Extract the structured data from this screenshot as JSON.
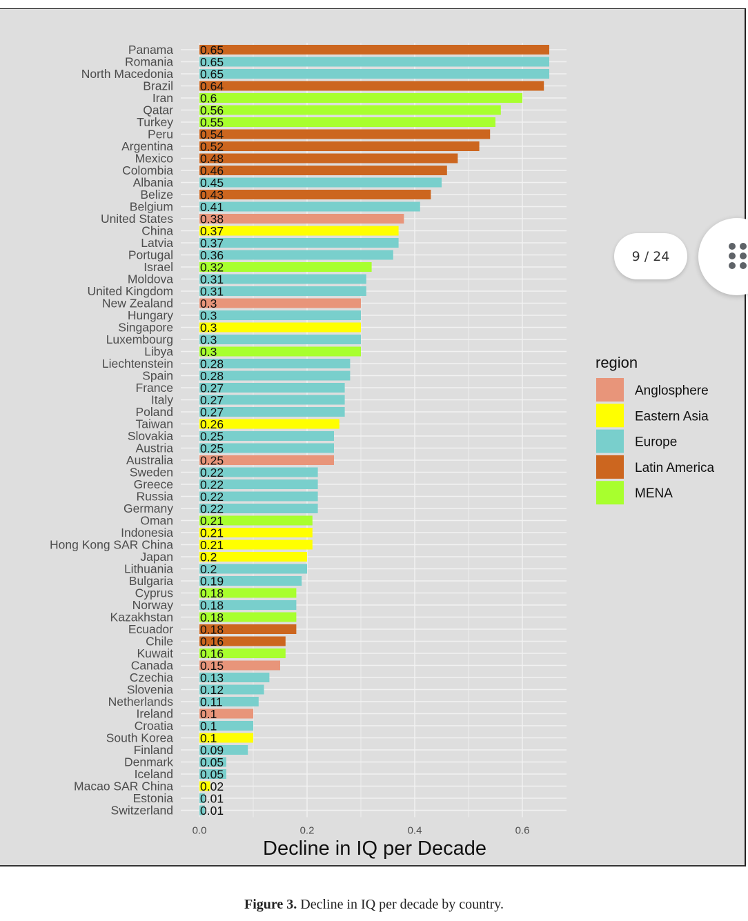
{
  "caption": {
    "label": "Figure 3.",
    "text": " Decline in IQ per decade by country."
  },
  "viewer": {
    "page_indicator": "9 / 24",
    "grid_button_icon": "grid-dots-icon"
  },
  "chart_data": {
    "type": "bar",
    "orientation": "horizontal",
    "title": "",
    "xlabel": "Decline in IQ per Decade",
    "ylabel": "",
    "xlim": [
      0,
      0.68
    ],
    "xticks": [
      0.0,
      0.2,
      0.4,
      0.6
    ],
    "xtick_labels": [
      "0.0",
      "0.2",
      "0.4",
      "0.6"
    ],
    "grid": true,
    "legend": {
      "title": "region",
      "position": "right",
      "entries": [
        {
          "name": "Anglosphere",
          "color": "#E8957A"
        },
        {
          "name": "Eastern Asia",
          "color": "#FFFF00"
        },
        {
          "name": "Europe",
          "color": "#79CFCC"
        },
        {
          "name": "Latin America",
          "color": "#CC661F"
        },
        {
          "name": "MENA",
          "color": "#A8FF2E"
        }
      ]
    },
    "bars": [
      {
        "country": "Panama",
        "value": 0.65,
        "label": "0.65",
        "region": "Latin America"
      },
      {
        "country": "Romania",
        "value": 0.65,
        "label": "0.65",
        "region": "Europe"
      },
      {
        "country": "North Macedonia",
        "value": 0.65,
        "label": "0.65",
        "region": "Europe"
      },
      {
        "country": "Brazil",
        "value": 0.64,
        "label": "0.64",
        "region": "Latin America"
      },
      {
        "country": "Iran",
        "value": 0.6,
        "label": "0.6",
        "region": "MENA"
      },
      {
        "country": "Qatar",
        "value": 0.56,
        "label": "0.56",
        "region": "MENA"
      },
      {
        "country": "Turkey",
        "value": 0.55,
        "label": "0.55",
        "region": "MENA"
      },
      {
        "country": "Peru",
        "value": 0.54,
        "label": "0.54",
        "region": "Latin America"
      },
      {
        "country": "Argentina",
        "value": 0.52,
        "label": "0.52",
        "region": "Latin America"
      },
      {
        "country": "Mexico",
        "value": 0.48,
        "label": "0.48",
        "region": "Latin America"
      },
      {
        "country": "Colombia",
        "value": 0.46,
        "label": "0.46",
        "region": "Latin America"
      },
      {
        "country": "Albania",
        "value": 0.45,
        "label": "0.45",
        "region": "Europe"
      },
      {
        "country": "Belize",
        "value": 0.43,
        "label": "0.43",
        "region": "Latin America"
      },
      {
        "country": "Belgium",
        "value": 0.41,
        "label": "0.41",
        "region": "Europe"
      },
      {
        "country": "United States",
        "value": 0.38,
        "label": "0.38",
        "region": "Anglosphere"
      },
      {
        "country": "China",
        "value": 0.37,
        "label": "0.37",
        "region": "Eastern Asia"
      },
      {
        "country": "Latvia",
        "value": 0.37,
        "label": "0.37",
        "region": "Europe"
      },
      {
        "country": "Portugal",
        "value": 0.36,
        "label": "0.36",
        "region": "Europe"
      },
      {
        "country": "Israel",
        "value": 0.32,
        "label": "0.32",
        "region": "MENA"
      },
      {
        "country": "Moldova",
        "value": 0.31,
        "label": "0.31",
        "region": "Europe"
      },
      {
        "country": "United Kingdom",
        "value": 0.31,
        "label": "0.31",
        "region": "Europe"
      },
      {
        "country": "New Zealand",
        "value": 0.3,
        "label": "0.3",
        "region": "Anglosphere"
      },
      {
        "country": "Hungary",
        "value": 0.3,
        "label": "0.3",
        "region": "Europe"
      },
      {
        "country": "Singapore",
        "value": 0.3,
        "label": "0.3",
        "region": "Eastern Asia"
      },
      {
        "country": "Luxembourg",
        "value": 0.3,
        "label": "0.3",
        "region": "Europe"
      },
      {
        "country": "Libya",
        "value": 0.3,
        "label": "0.3",
        "region": "MENA"
      },
      {
        "country": "Liechtenstein",
        "value": 0.28,
        "label": "0.28",
        "region": "Europe"
      },
      {
        "country": "Spain",
        "value": 0.28,
        "label": "0.28",
        "region": "Europe"
      },
      {
        "country": "France",
        "value": 0.27,
        "label": "0.27",
        "region": "Europe"
      },
      {
        "country": "Italy",
        "value": 0.27,
        "label": "0.27",
        "region": "Europe"
      },
      {
        "country": "Poland",
        "value": 0.27,
        "label": "0.27",
        "region": "Europe"
      },
      {
        "country": "Taiwan",
        "value": 0.26,
        "label": "0.26",
        "region": "Eastern Asia"
      },
      {
        "country": "Slovakia",
        "value": 0.25,
        "label": "0.25",
        "region": "Europe"
      },
      {
        "country": "Austria",
        "value": 0.25,
        "label": "0.25",
        "region": "Europe"
      },
      {
        "country": "Australia",
        "value": 0.25,
        "label": "0.25",
        "region": "Anglosphere"
      },
      {
        "country": "Sweden",
        "value": 0.22,
        "label": "0.22",
        "region": "Europe"
      },
      {
        "country": "Greece",
        "value": 0.22,
        "label": "0.22",
        "region": "Europe"
      },
      {
        "country": "Russia",
        "value": 0.22,
        "label": "0.22",
        "region": "Europe"
      },
      {
        "country": "Germany",
        "value": 0.22,
        "label": "0.22",
        "region": "Europe"
      },
      {
        "country": "Oman",
        "value": 0.21,
        "label": "0.21",
        "region": "MENA"
      },
      {
        "country": "Indonesia",
        "value": 0.21,
        "label": "0.21",
        "region": "Eastern Asia"
      },
      {
        "country": "Hong Kong SAR China",
        "value": 0.21,
        "label": "0.21",
        "region": "Eastern Asia"
      },
      {
        "country": "Japan",
        "value": 0.2,
        "label": "0.2",
        "region": "Eastern Asia"
      },
      {
        "country": "Lithuania",
        "value": 0.2,
        "label": "0.2",
        "region": "Europe"
      },
      {
        "country": "Bulgaria",
        "value": 0.19,
        "label": "0.19",
        "region": "Europe"
      },
      {
        "country": "Cyprus",
        "value": 0.18,
        "label": "0.18",
        "region": "MENA"
      },
      {
        "country": "Norway",
        "value": 0.18,
        "label": "0.18",
        "region": "Europe"
      },
      {
        "country": "Kazakhstan",
        "value": 0.18,
        "label": "0.18",
        "region": "MENA"
      },
      {
        "country": "Ecuador",
        "value": 0.18,
        "label": "0.18",
        "region": "Latin America"
      },
      {
        "country": "Chile",
        "value": 0.16,
        "label": "0.16",
        "region": "Latin America"
      },
      {
        "country": "Kuwait",
        "value": 0.16,
        "label": "0.16",
        "region": "MENA"
      },
      {
        "country": "Canada",
        "value": 0.15,
        "label": "0.15",
        "region": "Anglosphere"
      },
      {
        "country": "Czechia",
        "value": 0.13,
        "label": "0.13",
        "region": "Europe"
      },
      {
        "country": "Slovenia",
        "value": 0.12,
        "label": "0.12",
        "region": "Europe"
      },
      {
        "country": "Netherlands",
        "value": 0.11,
        "label": "0.11",
        "region": "Europe"
      },
      {
        "country": "Ireland",
        "value": 0.1,
        "label": "0.1",
        "region": "Anglosphere"
      },
      {
        "country": "Croatia",
        "value": 0.1,
        "label": "0.1",
        "region": "Europe"
      },
      {
        "country": "South Korea",
        "value": 0.1,
        "label": "0.1",
        "region": "Eastern Asia"
      },
      {
        "country": "Finland",
        "value": 0.09,
        "label": "0.09",
        "region": "Europe"
      },
      {
        "country": "Denmark",
        "value": 0.05,
        "label": "0.05",
        "region": "Europe"
      },
      {
        "country": "Iceland",
        "value": 0.05,
        "label": "0.05",
        "region": "Europe"
      },
      {
        "country": "Macao SAR China",
        "value": 0.02,
        "label": "0.02",
        "region": "Eastern Asia"
      },
      {
        "country": "Estonia",
        "value": 0.01,
        "label": "0.01",
        "region": "Europe"
      },
      {
        "country": "Switzerland",
        "value": 0.01,
        "label": "0.01",
        "region": "Europe"
      }
    ]
  }
}
